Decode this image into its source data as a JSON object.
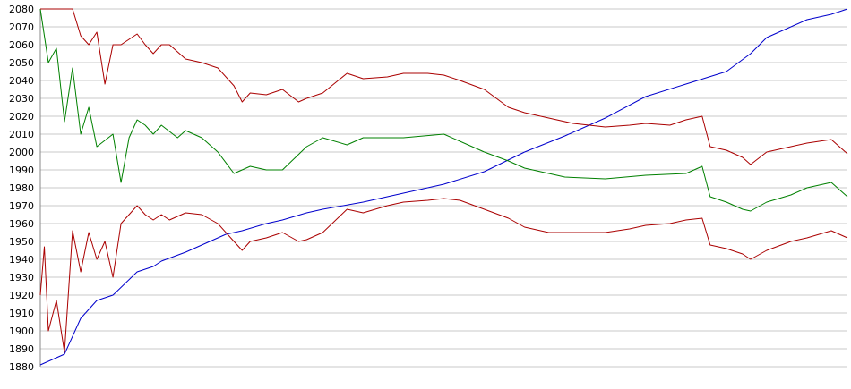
{
  "chart_data": {
    "type": "line",
    "title": "",
    "xlabel": "",
    "ylabel": "",
    "ylim": [
      1880,
      2080
    ],
    "ytick_step": 10,
    "y_ticks": [
      1880,
      1890,
      1900,
      1910,
      1920,
      1930,
      1940,
      1950,
      1960,
      1970,
      1980,
      1990,
      2000,
      2010,
      2020,
      2030,
      2040,
      2050,
      2060,
      2070,
      2080
    ],
    "xlim": [
      0,
      100
    ],
    "grid": true,
    "legend": "none",
    "series": [
      {
        "color": "#0000cc",
        "x": [
          0,
          3,
          5,
          7,
          9,
          12,
          14,
          15,
          18,
          20,
          23,
          25,
          28,
          30,
          33,
          35,
          40,
          45,
          50,
          55,
          60,
          65,
          70,
          75,
          80,
          85,
          88,
          90,
          92,
          95,
          98,
          100
        ],
        "values": [
          1881,
          1887,
          1907,
          1917,
          1920,
          1933,
          1936,
          1939,
          1944,
          1948,
          1954,
          1956,
          1960,
          1962,
          1966,
          1968,
          1972,
          1977,
          1982,
          1989,
          2000,
          2009,
          2019,
          2031,
          2038,
          2045,
          2055,
          2064,
          2068,
          2074,
          2077,
          2080
        ]
      },
      {
        "color": "#008000",
        "x": [
          0,
          1,
          2,
          3,
          4,
          5,
          6,
          7,
          9,
          10,
          11,
          12,
          13,
          14,
          15,
          17,
          18,
          20,
          22,
          24,
          26,
          28,
          30,
          33,
          35,
          38,
          40,
          45,
          50,
          55,
          58,
          60,
          65,
          70,
          75,
          80,
          82,
          83,
          85,
          87,
          88,
          90,
          93,
          95,
          98,
          100
        ],
        "values": [
          2080,
          2050,
          2058,
          2017,
          2047,
          2010,
          2025,
          2003,
          2010,
          1983,
          2008,
          2018,
          2015,
          2010,
          2015,
          2008,
          2012,
          2008,
          2000,
          1988,
          1992,
          1990,
          1990,
          2003,
          2008,
          2004,
          2008,
          2008,
          2010,
          2000,
          1995,
          1991,
          1986,
          1985,
          1987,
          1988,
          1992,
          1975,
          1972,
          1968,
          1967,
          1972,
          1976,
          1980,
          1983,
          1975
        ]
      },
      {
        "color": "#aa0000",
        "x": [
          0,
          4,
          5,
          6,
          7,
          8,
          9,
          10,
          12,
          13,
          14,
          15,
          16,
          18,
          20,
          22,
          24,
          25,
          26,
          28,
          30,
          32,
          33,
          35,
          38,
          40,
          43,
          45,
          48,
          50,
          52,
          55,
          58,
          60,
          63,
          66,
          70,
          73,
          75,
          78,
          80,
          82,
          83,
          85,
          87,
          88,
          90,
          93,
          95,
          98,
          100
        ],
        "values": [
          2080,
          2080,
          2065,
          2060,
          2067,
          2038,
          2060,
          2060,
          2066,
          2060,
          2055,
          2060,
          2060,
          2052,
          2050,
          2047,
          2037,
          2028,
          2033,
          2032,
          2035,
          2028,
          2030,
          2033,
          2044,
          2041,
          2042,
          2044,
          2044,
          2043,
          2040,
          2035,
          2025,
          2022,
          2019,
          2016,
          2014,
          2015,
          2016,
          2015,
          2018,
          2020,
          2003,
          2001,
          1997,
          1993,
          2000,
          2003,
          2005,
          2007,
          1999
        ]
      },
      {
        "color": "#aa0000",
        "x": [
          0,
          0.5,
          1,
          2,
          3,
          4,
          5,
          6,
          7,
          8,
          9,
          10,
          12,
          13,
          14,
          15,
          16,
          18,
          20,
          22,
          24,
          25,
          26,
          28,
          30,
          32,
          33,
          35,
          38,
          40,
          43,
          45,
          48,
          50,
          52,
          55,
          58,
          60,
          63,
          66,
          70,
          73,
          75,
          78,
          80,
          82,
          83,
          85,
          87,
          88,
          90,
          93,
          95,
          98,
          100
        ],
        "values": [
          1920,
          1947,
          1900,
          1917,
          1888,
          1956,
          1933,
          1955,
          1940,
          1950,
          1930,
          1960,
          1970,
          1965,
          1962,
          1965,
          1962,
          1966,
          1965,
          1960,
          1950,
          1945,
          1950,
          1952,
          1955,
          1950,
          1951,
          1955,
          1968,
          1966,
          1970,
          1972,
          1973,
          1974,
          1973,
          1968,
          1963,
          1958,
          1955,
          1955,
          1955,
          1957,
          1959,
          1960,
          1962,
          1963,
          1948,
          1946,
          1943,
          1940,
          1945,
          1950,
          1952,
          1956,
          1952
        ]
      }
    ]
  }
}
